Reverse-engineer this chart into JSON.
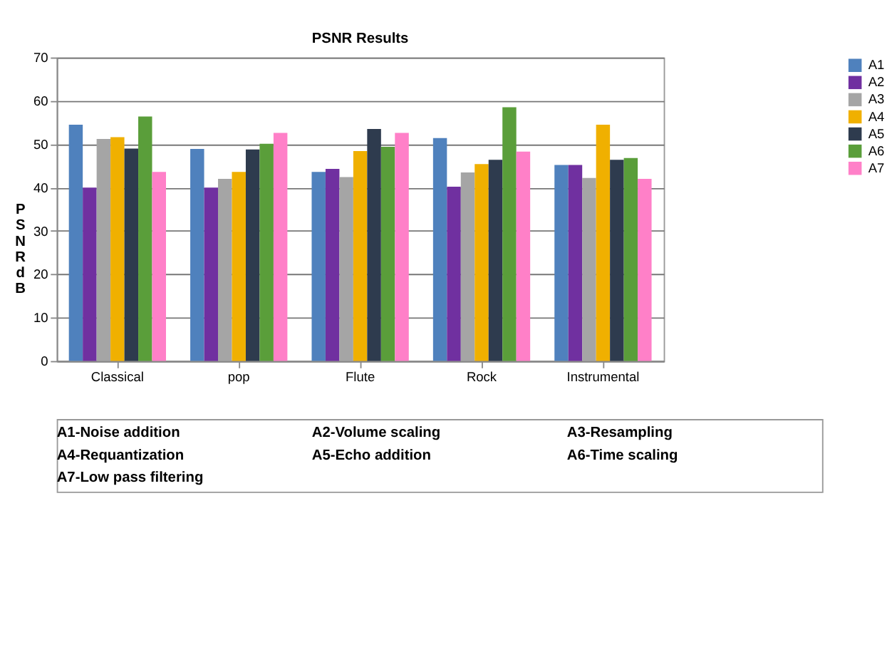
{
  "chart_data": {
    "type": "bar",
    "title": "PSNR Results",
    "ylabel": "PSNR dB",
    "categories": [
      "Classical",
      "pop",
      "Flute",
      "Rock",
      "Instrumental"
    ],
    "series": [
      {
        "name": "A1",
        "color": "#4f81bd",
        "values": [
          54.5,
          48.9,
          43.6,
          51.4,
          45.2
        ]
      },
      {
        "name": "A2",
        "color": "#7030a0",
        "values": [
          40,
          40,
          44.3,
          40.2,
          45.2
        ]
      },
      {
        "name": "A3",
        "color": "#a5a5a5",
        "values": [
          51.2,
          42,
          42.4,
          43.5,
          42.2
        ]
      },
      {
        "name": "A4",
        "color": "#f0b000",
        "values": [
          51.6,
          43.6,
          48.4,
          45.4,
          54.5
        ]
      },
      {
        "name": "A5",
        "color": "#2e3b4e",
        "values": [
          49,
          48.8,
          53.5,
          46.4,
          46.4
        ]
      },
      {
        "name": "A6",
        "color": "#5a9e3a",
        "values": [
          56.4,
          50.1,
          49.4,
          58.5,
          46.8
        ]
      },
      {
        "name": "A7",
        "color": "#ff80c8",
        "values": [
          43.6,
          52.6,
          52.6,
          48.3,
          42
        ]
      }
    ],
    "ylim": [
      0,
      70
    ],
    "yticks": [
      0,
      10,
      20,
      30,
      40,
      50,
      60,
      70
    ],
    "grid": "y",
    "legend": "right",
    "annotations": [
      "A1-Noise addition",
      "A2-Volume scaling",
      "A3-Resampling",
      "A4-Requantization",
      "A5-Echo addition",
      "A6-Time scaling",
      "A7-Low pass filtering"
    ]
  }
}
